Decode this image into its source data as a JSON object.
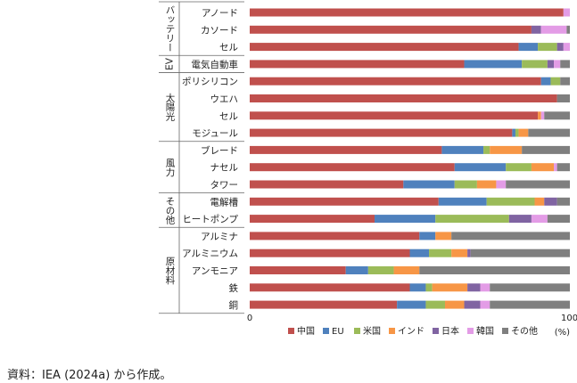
{
  "chart_data": {
    "type": "bar",
    "orientation": "horizontal",
    "stacked": true,
    "xlim": [
      0,
      100
    ],
    "x_ticks": [
      "0",
      "100"
    ],
    "unit_label": "(%)",
    "legend_position": "bottom-right",
    "groups": [
      {
        "label": "バッテリー",
        "rows": [
          "アノード",
          "カソード",
          "セル"
        ]
      },
      {
        "label": "EV",
        "rows": [
          "電気自動車"
        ]
      },
      {
        "label": "太陽光",
        "rows": [
          "ポリシリコン",
          "ウエハ",
          "セル",
          "モジュール"
        ]
      },
      {
        "label": "風力",
        "rows": [
          "ブレード",
          "ナセル",
          "タワー"
        ]
      },
      {
        "label": "その他",
        "rows": [
          "電解槽",
          "ヒートポンプ"
        ]
      },
      {
        "label": "原材料",
        "rows": [
          "アルミナ",
          "アルミニウム",
          "アンモニア",
          "鉄",
          "銅"
        ]
      }
    ],
    "categories": [
      "アノード",
      "カソード",
      "セル",
      "電気自動車",
      "ポリシリコン",
      "ウエハ",
      "セル",
      "モジュール",
      "ブレード",
      "ナセル",
      "タワー",
      "電解槽",
      "ヒートポンプ",
      "アルミナ",
      "アルミニウム",
      "アンモニア",
      "鉄",
      "銅"
    ],
    "series": [
      {
        "name": "中国",
        "color": "#c0504d",
        "values": [
          98,
          88,
          84,
          67,
          91,
          96,
          90,
          82,
          60,
          64,
          48,
          59,
          39,
          53,
          50,
          30,
          50,
          46
        ]
      },
      {
        "name": "EU",
        "color": "#4f81bd",
        "values": [
          0,
          0,
          6,
          18,
          3,
          0,
          0,
          1,
          13,
          16,
          16,
          15,
          19,
          5,
          6,
          7,
          5,
          9
        ]
      },
      {
        "name": "米国",
        "color": "#9bbb59",
        "values": [
          0,
          0,
          6,
          8,
          3,
          0,
          0,
          1,
          2,
          8,
          7,
          15,
          23,
          0,
          7,
          8,
          2,
          6
        ]
      },
      {
        "name": "インド",
        "color": "#f79646",
        "values": [
          0,
          0,
          0,
          0,
          0,
          0,
          1,
          3,
          10,
          7,
          6,
          3,
          0,
          5,
          5,
          8,
          11,
          6
        ]
      },
      {
        "name": "日本",
        "color": "#8064a2",
        "values": [
          0,
          3,
          2,
          2,
          0,
          0,
          0,
          0,
          0,
          0,
          0,
          4,
          7,
          0,
          1,
          0,
          4,
          5
        ]
      },
      {
        "name": "韓国",
        "color": "#e39ce6",
        "values": [
          2,
          8,
          2,
          2,
          0,
          0,
          1,
          0,
          0,
          1,
          3,
          0,
          5,
          0,
          0,
          0,
          3,
          3
        ]
      },
      {
        "name": "その他",
        "color": "#7f7f7f",
        "values": [
          0,
          1,
          0,
          3,
          3,
          4,
          8,
          13,
          15,
          4,
          20,
          4,
          7,
          37,
          31,
          47,
          25,
          25
        ]
      }
    ]
  },
  "footer": {
    "source": "資料：IEA (2024a) から作成。"
  }
}
